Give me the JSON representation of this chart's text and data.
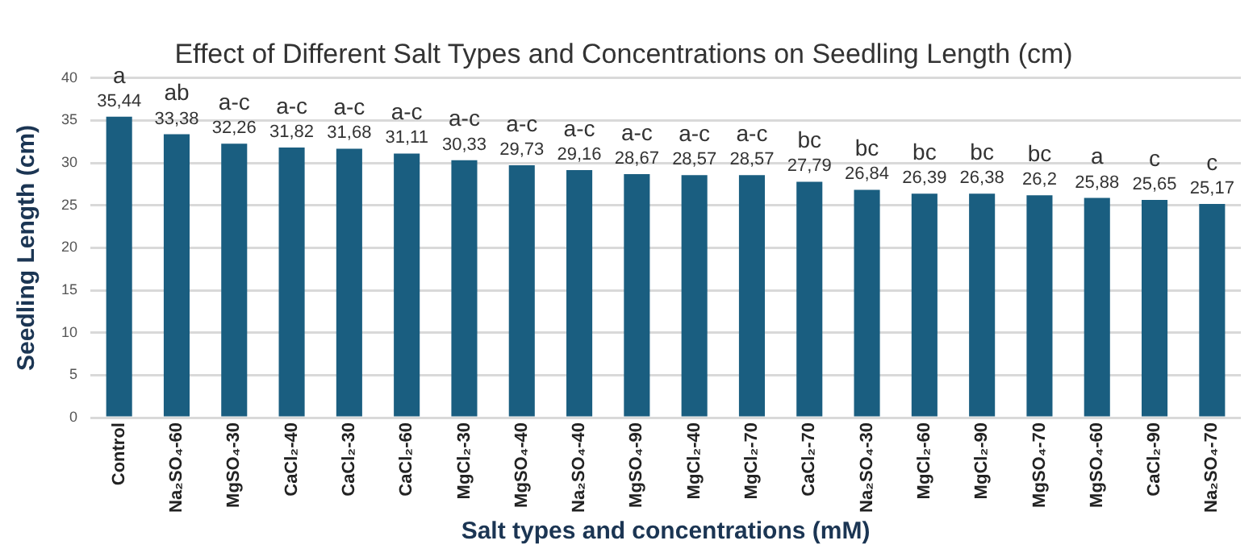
{
  "chart_data": {
    "type": "bar",
    "title": "Effect of Different Salt Types and Concentrations on Seedling Length (cm)",
    "xlabel": "Salt types and concentrations (mM)",
    "ylabel": "Seedling Length (cm)",
    "categories": [
      "Control",
      "Na₂SO₄-60",
      "MgSO₄-30",
      "CaCl₂-40",
      "CaCl₂-30",
      "CaCl₂-60",
      "MgCl₂-30",
      "MgSO₄-40",
      "Na₂SO₄-40",
      "MgSO₄-90",
      "MgCl₂-40",
      "MgCl₂-70",
      "CaCl₂-70",
      "Na₂SO₄-30",
      "MgCl₂-60",
      "MgCl₂-90",
      "MgSO₄-70",
      "MgSO₄-60",
      "CaCl₂-90",
      "Na₂SO₄-70"
    ],
    "values": [
      35.44,
      33.38,
      32.26,
      31.82,
      31.68,
      31.11,
      30.33,
      29.73,
      29.16,
      28.67,
      28.57,
      28.57,
      27.79,
      26.84,
      26.39,
      26.38,
      26.2,
      25.88,
      25.65,
      25.17
    ],
    "value_labels": [
      "35,44",
      "33,38",
      "32,26",
      "31,82",
      "31,68",
      "31,11",
      "30,33",
      "29,73",
      "29,16",
      "28,67",
      "28,57",
      "28,57",
      "27,79",
      "26,84",
      "26,39",
      "26,38",
      "26,2",
      "25,88",
      "25,65",
      "25,17"
    ],
    "color": "#1a5e80",
    "ylim": [
      0,
      40
    ],
    "yticks": [
      0,
      5,
      10,
      15,
      20,
      25,
      30,
      35,
      40
    ],
    "grid": "y",
    "legend": false,
    "annotations": [
      {
        "text": "a",
        "x": "Control",
        "y": 35.44
      },
      {
        "text": "ab",
        "x": "Na₂SO₄-60",
        "y": 33.38
      },
      {
        "text": "a-c",
        "x": "MgSO₄-30",
        "y": 32.26
      },
      {
        "text": "a-c",
        "x": "CaCl₂-40",
        "y": 31.82
      },
      {
        "text": "a-c",
        "x": "CaCl₂-30",
        "y": 31.68
      },
      {
        "text": "a-c",
        "x": "CaCl₂-60",
        "y": 31.11
      },
      {
        "text": "a-c",
        "x": "MgCl₂-30",
        "y": 30.33
      },
      {
        "text": "a-c",
        "x": "MgSO₄-40",
        "y": 29.73
      },
      {
        "text": "a-c",
        "x": "Na₂SO₄-40",
        "y": 29.16
      },
      {
        "text": "a-c",
        "x": "MgSO₄-90",
        "y": 28.67
      },
      {
        "text": "a-c",
        "x": "MgCl₂-40",
        "y": 28.57
      },
      {
        "text": "a-c",
        "x": "MgCl₂-70",
        "y": 28.57
      },
      {
        "text": "bc",
        "x": "CaCl₂-70",
        "y": 27.79
      },
      {
        "text": "bc",
        "x": "Na₂SO₄-30",
        "y": 26.84
      },
      {
        "text": "bc",
        "x": "MgCl₂-60",
        "y": 26.39
      },
      {
        "text": "bc",
        "x": "MgCl₂-90",
        "y": 26.38
      },
      {
        "text": "bc",
        "x": "MgSO₄-70",
        "y": 26.2
      },
      {
        "text": "a",
        "x": "MgSO₄-60",
        "y": 25.88
      },
      {
        "text": "c",
        "x": "CaCl₂-90",
        "y": 25.65
      },
      {
        "text": "c",
        "x": "Na₂SO₄-70",
        "y": 25.17
      }
    ]
  }
}
